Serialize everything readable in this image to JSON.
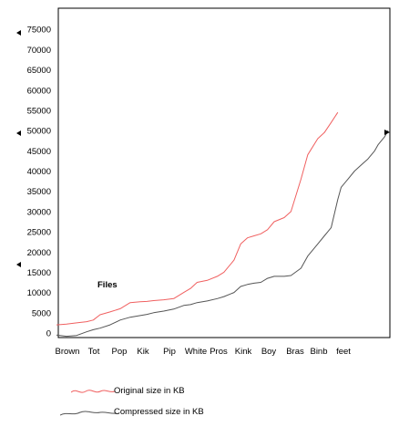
{
  "chart_data": {
    "type": "line",
    "title": "",
    "xlabel": "",
    "ylabel": "",
    "ylim": [
      0,
      80000
    ],
    "yticks": [
      0,
      5000,
      10000,
      15000,
      20000,
      25000,
      30000,
      35000,
      40000,
      45000,
      50000,
      55000,
      60000,
      65000,
      70000,
      75000
    ],
    "categories": [
      "Brown",
      "Tot",
      "Pop",
      "Kik",
      "Pip",
      "White",
      "Pros",
      "Kink",
      "Boy",
      "Bras",
      "Binb",
      "feet"
    ],
    "annotation": "Files",
    "grid": false,
    "legend_position": "bottom",
    "colors": {
      "original": "#f06060",
      "compressed": "#555555",
      "axis": "#000000"
    },
    "series": [
      {
        "name": "Original size in KB",
        "color": "#f06060",
        "x": [
          0,
          0.3,
          0.6,
          0.9,
          1.1,
          1.3,
          1.6,
          1.9,
          2.2,
          2.5,
          2.7,
          2.9,
          3.2,
          3.5,
          3.8,
          4.0,
          4.2,
          4.5,
          4.8,
          5.0,
          5.3,
          5.5,
          5.7,
          5.9,
          6.1,
          6.3,
          6.5,
          6.8,
          7.0,
          7.3,
          7.5,
          7.8,
          8.0,
          8.2,
          8.4,
          8.5,
          8.7,
          8.9,
          9.1,
          9.3,
          9.5,
          9.6,
          9.8,
          9.9
        ],
        "values": [
          2000,
          2200,
          2500,
          2800,
          3200,
          4500,
          5200,
          6000,
          7500,
          7700,
          7800,
          8000,
          8200,
          8500,
          10000,
          11000,
          12500,
          13000,
          14000,
          15000,
          18000,
          22000,
          23500,
          24000,
          24500,
          25500,
          27500,
          28500,
          30000,
          38000,
          44000,
          48000,
          49500,
          52000,
          54500,
          null,
          null,
          null,
          null,
          null,
          null,
          null,
          null,
          null
        ]
      },
      {
        "name": "Compressed size in KB",
        "color": "#555555",
        "x": [
          0,
          0.3,
          0.6,
          0.9,
          1.1,
          1.3,
          1.6,
          1.9,
          2.2,
          2.5,
          2.7,
          2.9,
          3.2,
          3.5,
          3.8,
          4.0,
          4.2,
          4.5,
          4.8,
          5.0,
          5.3,
          5.5,
          5.7,
          5.9,
          6.1,
          6.3,
          6.5,
          6.8,
          7.0,
          7.3,
          7.5,
          7.8,
          8.0,
          8.2,
          8.4,
          8.5,
          8.7,
          8.9,
          9.1,
          9.3,
          9.5,
          9.6,
          9.8,
          9.9
        ],
        "values": [
          -500,
          -800,
          -600,
          300,
          800,
          1200,
          2000,
          3200,
          3900,
          4300,
          4600,
          5000,
          5400,
          5900,
          6800,
          7000,
          7500,
          7900,
          8500,
          9000,
          10000,
          11500,
          12000,
          12300,
          12500,
          13500,
          14000,
          14000,
          14200,
          16000,
          19000,
          22000,
          24000,
          26000,
          33000,
          36000,
          38000,
          40000,
          41500,
          43000,
          45000,
          46500,
          48500,
          50000
        ]
      }
    ]
  }
}
